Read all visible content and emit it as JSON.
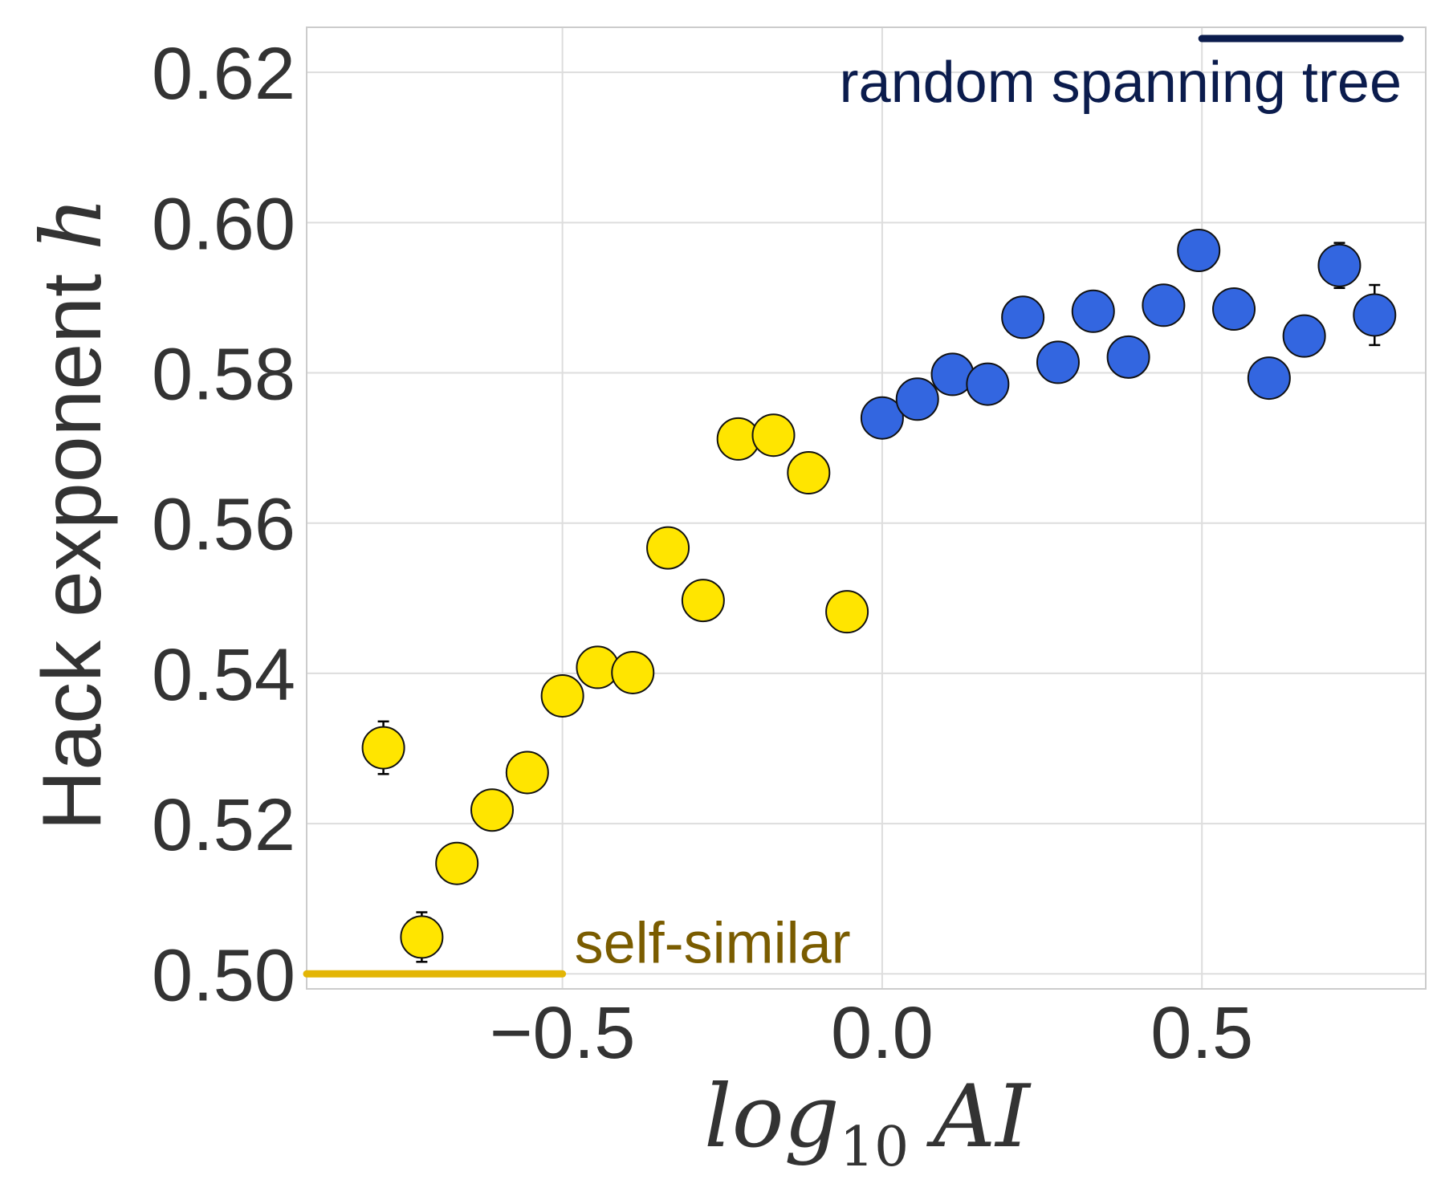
{
  "chart_data": {
    "type": "scatter",
    "title": "",
    "xlabel": {
      "base": "log",
      "sub": "10",
      "rest": "AI"
    },
    "ylabel": {
      "text": "Hack exponent ",
      "var": "h"
    },
    "xlim": [
      -0.9,
      0.85
    ],
    "ylim": [
      0.498,
      0.626
    ],
    "xticks": [
      -0.5,
      0.0,
      0.5
    ],
    "xtick_labels": [
      "−0.5",
      "0.0",
      "0.5"
    ],
    "yticks": [
      0.5,
      0.52,
      0.54,
      0.56,
      0.58,
      0.6,
      0.62
    ],
    "ytick_labels": [
      "0.50",
      "0.52",
      "0.54",
      "0.56",
      "0.58",
      "0.60",
      "0.62"
    ],
    "grid": true,
    "series": [
      {
        "color": "#FFE500",
        "points": [
          {
            "x": -0.78,
            "y": 0.5301,
            "err": 0.0035
          },
          {
            "x": -0.72,
            "y": 0.5049,
            "err": 0.0033
          },
          {
            "x": -0.665,
            "y": 0.5147
          },
          {
            "x": -0.61,
            "y": 0.5218
          },
          {
            "x": -0.555,
            "y": 0.5268
          },
          {
            "x": -0.5,
            "y": 0.537
          },
          {
            "x": -0.445,
            "y": 0.5408
          },
          {
            "x": -0.39,
            "y": 0.5401
          },
          {
            "x": -0.335,
            "y": 0.5567
          },
          {
            "x": -0.28,
            "y": 0.5497
          },
          {
            "x": -0.225,
            "y": 0.5712
          },
          {
            "x": -0.17,
            "y": 0.5717
          },
          {
            "x": -0.115,
            "y": 0.5667
          },
          {
            "x": -0.055,
            "y": 0.5482
          }
        ]
      },
      {
        "color": "#3366E0",
        "points": [
          {
            "x": 0.0,
            "y": 0.574
          },
          {
            "x": 0.055,
            "y": 0.5765
          },
          {
            "x": 0.11,
            "y": 0.5798
          },
          {
            "x": 0.165,
            "y": 0.5785
          },
          {
            "x": 0.22,
            "y": 0.5874
          },
          {
            "x": 0.275,
            "y": 0.5814
          },
          {
            "x": 0.33,
            "y": 0.5882
          },
          {
            "x": 0.385,
            "y": 0.5821
          },
          {
            "x": 0.44,
            "y": 0.589
          },
          {
            "x": 0.495,
            "y": 0.5963
          },
          {
            "x": 0.55,
            "y": 0.5885
          },
          {
            "x": 0.605,
            "y": 0.5793
          },
          {
            "x": 0.66,
            "y": 0.5849
          },
          {
            "x": 0.715,
            "y": 0.5943,
            "err": 0.003
          },
          {
            "x": 0.77,
            "y": 0.5877,
            "err": 0.004
          }
        ]
      }
    ],
    "reference_lines": [
      {
        "label": "self-similar",
        "y": 0.5,
        "x_range": [
          -0.9,
          -0.5
        ],
        "color": "#E3B505",
        "text_color": "#7A5C00",
        "label_placement": "bottom-left"
      },
      {
        "label": "random spanning tree",
        "y": 0.6245,
        "x_range": [
          0.5,
          0.81
        ],
        "color": "#0B1C4D",
        "text_color": "#0B1C4D",
        "label_placement": "top-right"
      }
    ]
  }
}
